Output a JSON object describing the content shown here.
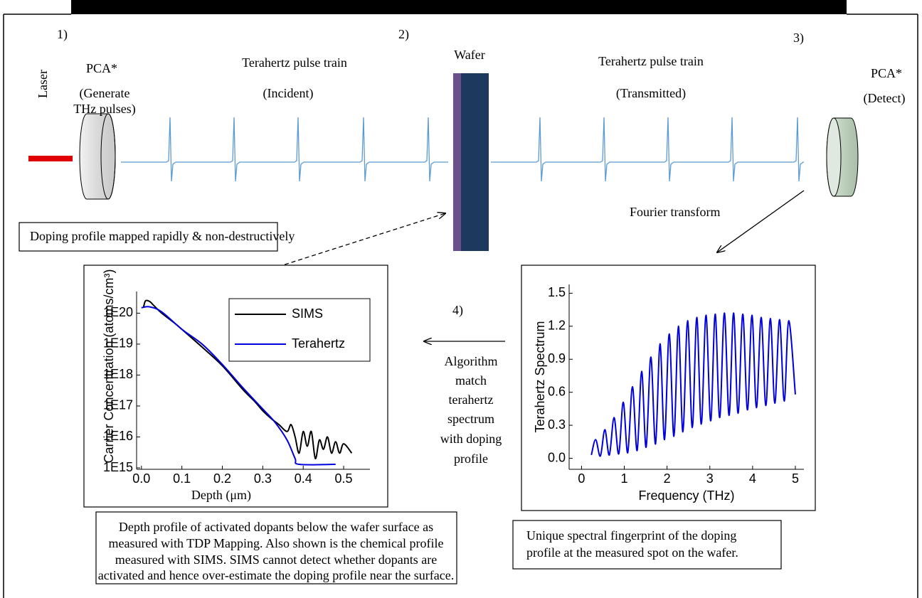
{
  "diagram": {
    "step1": "1)",
    "step2": "2)",
    "step3": "3)",
    "step4": "4)",
    "laser": "Laser",
    "pca_left": "PCA*",
    "pca_left_sub": [
      "(Generate",
      "THz pulses)"
    ],
    "train_left": "Terahertz pulse train",
    "train_left_sub": "(Incident)",
    "wafer": "Wafer",
    "train_right": "Terahertz pulse train",
    "train_right_sub": "(Transmitted)",
    "pca_right": "PCA*",
    "pca_right_sub": "(Detect)",
    "fourier": "Fourier transform",
    "doping_box": "Doping profile mapped rapidly & non-destructively",
    "algorithm": [
      "Algorithm",
      "match",
      "terahertz",
      "spectrum",
      "with doping",
      "profile"
    ],
    "caption_left": [
      "Depth profile of activated dopants below the wafer surface as",
      "measured with TDP Mapping. Also shown is the chemical profile",
      "measured with SIMS. SIMS cannot detect whether dopants are",
      "activated and hence over-estimate the doping profile near the surface."
    ],
    "caption_right": [
      "Unique spectral fingerprint of the doping",
      "profile at the measured spot on the wafer."
    ]
  },
  "chart_data": [
    {
      "type": "line",
      "x_label": "Depth (μm)",
      "y_label": "Carrier Concentration (atoms/cm³)",
      "log_y": true,
      "legend": "upper right",
      "xlim": [
        -0.012,
        0.565
      ],
      "ylim": [
        900000000000000.0,
        5e+20
      ],
      "xticks": [
        {
          "value": 0,
          "label": "0.0"
        },
        0.1,
        0.2,
        0.3,
        0.4,
        0.5
      ],
      "yticks": [
        {
          "value": 1000000000000000.0,
          "label": "1E15"
        },
        {
          "value": 1e+16,
          "label": "1E16"
        },
        {
          "value": 1e+17,
          "label": "1E17"
        },
        {
          "value": 1e+18,
          "label": "1E18"
        },
        {
          "value": 1e+19,
          "label": "1E19"
        },
        {
          "value": 1e+20,
          "label": "1E20"
        }
      ],
      "series": [
        {
          "name": "SIMS",
          "color": "#000000",
          "x": [
            0.005,
            0.01,
            0.02,
            0.03,
            0.05,
            0.08,
            0.1,
            0.15,
            0.2,
            0.25,
            0.28,
            0.3,
            0.32,
            0.34,
            0.36,
            0.37,
            0.38,
            0.39,
            0.4,
            0.41,
            0.42,
            0.43,
            0.44,
            0.45,
            0.46,
            0.47,
            0.48,
            0.49,
            0.5,
            0.52
          ],
          "values": [
            1.5e+20,
            2.5e+20,
            2.4e+20,
            1.8e+20,
            1e+20,
            5e+19,
            3e+19,
            8e+18,
            2e+18,
            3.5e+17,
            1.4e+17,
            7e+16,
            4e+16,
            2.5e+16,
            1.5e+16,
            2.5e+16,
            1e+16,
            3000000000000000.0,
            1.5e+16,
            5000000000000000.0,
            1.5e+16,
            2000000000000000.0,
            8000000000000000.0,
            4000000000000000.0,
            1e+16,
            3000000000000000.0,
            7000000000000000.0,
            3000000000000000.0,
            6000000000000000.0,
            3000000000000000.0
          ]
        },
        {
          "name": "Terahertz",
          "color": "#0000dd",
          "x": [
            0,
            0.02,
            0.05,
            0.1,
            0.15,
            0.2,
            0.25,
            0.3,
            0.33,
            0.36,
            0.38,
            0.39,
            0.48
          ],
          "values": [
            1.5e+20,
            1.6e+20,
            1.1e+20,
            3e+19,
            1e+19,
            2.2e+18,
            4e+17,
            8e+16,
            3e+16,
            8000000000000000.0,
            2000000000000000.0,
            1300000000000000.0,
            1300000000000000.0
          ]
        }
      ]
    },
    {
      "type": "line",
      "x_label": "Frequency (THz)",
      "y_label": "Terahertz Spectrum",
      "xlim": [
        -0.29,
        5.2
      ],
      "ylim": [
        -0.1,
        1.58
      ],
      "xticks": [
        0,
        1,
        2,
        3,
        4,
        5
      ],
      "yticks": [
        {
          "value": 0,
          "label": "0.0"
        },
        0.3,
        0.6,
        0.9,
        1.2,
        1.5
      ],
      "series": [
        {
          "color": "#0000dd",
          "x": [
            0.23,
            0.33,
            0.44,
            0.545,
            0.65,
            0.76,
            0.87,
            0.975,
            1.08,
            1.19,
            1.3,
            1.405,
            1.51,
            1.62,
            1.73,
            1.835,
            1.94,
            2.05,
            2.16,
            2.265,
            2.37,
            2.48,
            2.59,
            2.695,
            2.8,
            2.91,
            3.02,
            3.125,
            3.23,
            3.34,
            3.45,
            3.555,
            3.66,
            3.77,
            3.88,
            3.985,
            4.09,
            4.2,
            4.31,
            4.415,
            4.52,
            4.63,
            4.74,
            4.845,
            5.0
          ],
          "values": [
            0.03,
            0.17,
            0.02,
            0.26,
            0.03,
            0.37,
            0.04,
            0.51,
            0.05,
            0.65,
            0.07,
            0.79,
            0.1,
            0.92,
            0.13,
            1.04,
            0.17,
            1.13,
            0.2,
            1.2,
            0.24,
            1.25,
            0.28,
            1.28,
            0.31,
            1.3,
            0.34,
            1.31,
            0.37,
            1.32,
            0.39,
            1.32,
            0.41,
            1.31,
            0.44,
            1.3,
            0.46,
            1.28,
            0.48,
            1.27,
            0.5,
            1.26,
            0.52,
            1.25,
            0.58
          ]
        }
      ]
    }
  ]
}
